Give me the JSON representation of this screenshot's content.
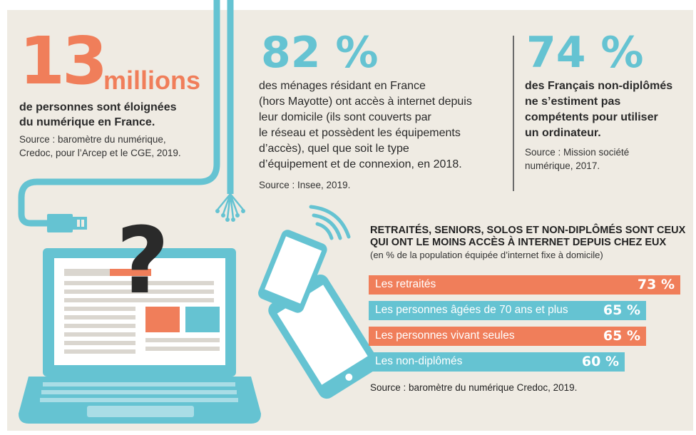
{
  "stat1": {
    "number": "13",
    "unit": "millions",
    "text_line1": "de personnes sont éloignées",
    "text_line2": "du numérique en France.",
    "source_line1": "Source : baromètre du numérique,",
    "source_line2": "Credoc, pour l’Arcep et le CGE, 2019."
  },
  "stat2": {
    "number": "82 %",
    "lines": [
      "des ménages résidant en France",
      "(hors Mayotte) ont accès à internet depuis",
      "leur domicile (ils sont couverts par",
      "le réseau et possèdent les équipements",
      "d’accès), quel que soit le type",
      "d’équipement et de connexion, en 2018."
    ],
    "source": "Source : Insee, 2019."
  },
  "stat3": {
    "number": "74 %",
    "lines": [
      "des Français non-diplômés",
      "ne s’estiment pas",
      "compétents pour utiliser",
      "un ordinateur."
    ],
    "source_line1": "Source : Mission société",
    "source_line2": "numérique, 2017."
  },
  "colors": {
    "orange": "#f07e5a",
    "blue": "#65c3d2",
    "background": "#efebe3"
  },
  "chart_data": {
    "type": "bar",
    "orientation": "horizontal",
    "title_line1": "RETRAITÉS, SENIORS, SOLOS ET NON-DIPLÔMÉS SONT CEUX",
    "title_line2": "QUI ONT LE MOINS ACCÈS À INTERNET DEPUIS CHEZ EUX",
    "subtitle": "(en % de la population équipée d’internet fixe à domicile)",
    "categories": [
      "Les retraités",
      "Les personnes âgées de 70 ans et plus",
      "Les personnes vivant seules",
      "Les non-diplômés"
    ],
    "values": [
      73,
      65,
      65,
      60
    ],
    "value_labels": [
      "73 %",
      "65 %",
      "65 %",
      "60 %"
    ],
    "bar_colors": [
      "#f07e5a",
      "#65c3d2",
      "#f07e5a",
      "#65c3d2"
    ],
    "xlim": [
      0,
      73
    ],
    "source": "Source : baromètre du numérique Credoc, 2019."
  }
}
